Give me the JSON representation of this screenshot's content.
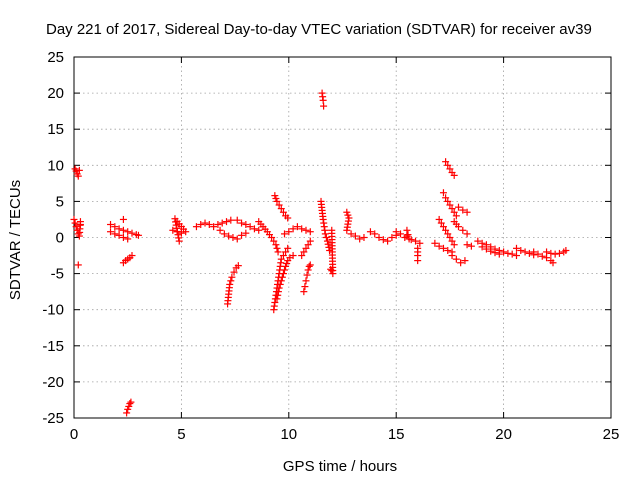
{
  "chart_data": {
    "type": "scatter",
    "title": "Day 221 of 2017, Sidereal Day-to-day VTEC variation (SDTVAR) for receiver av39",
    "xlabel": "GPS time / hours",
    "ylabel": "SDTVAR / TECUs",
    "xlim": [
      0,
      25
    ],
    "ylim": [
      -25,
      25
    ],
    "xticks": [
      0,
      5,
      10,
      15,
      20,
      25
    ],
    "yticks": [
      -25,
      -20,
      -15,
      -10,
      -5,
      0,
      5,
      10,
      15,
      20,
      25
    ],
    "grid": true,
    "marker": "+",
    "series": [
      {
        "name": "SDTVAR",
        "color": "#ff0000",
        "segments": [
          [
            [
              0.05,
              9.5
            ],
            [
              0.1,
              9.2
            ],
            [
              0.15,
              8.8
            ],
            [
              0.2,
              8.5
            ],
            [
              0.25,
              9.3
            ]
          ],
          [
            [
              0.0,
              2.5
            ],
            [
              0.05,
              2.0
            ],
            [
              0.1,
              1.5
            ],
            [
              0.15,
              1.0
            ],
            [
              0.2,
              0.5
            ],
            [
              0.25,
              0.2
            ],
            [
              0.3,
              2.2
            ],
            [
              0.3,
              1.8
            ]
          ],
          [
            [
              0.2,
              -3.8
            ]
          ],
          [
            [
              1.7,
              1.8
            ],
            [
              1.9,
              1.5
            ],
            [
              2.1,
              1.2
            ],
            [
              2.3,
              1.0
            ],
            [
              2.5,
              0.8
            ],
            [
              2.7,
              0.6
            ],
            [
              2.9,
              0.4
            ],
            [
              3.0,
              0.3
            ]
          ],
          [
            [
              1.7,
              0.8
            ],
            [
              1.9,
              0.5
            ],
            [
              2.1,
              0.3
            ],
            [
              2.3,
              0.0
            ],
            [
              2.5,
              -0.2
            ]
          ],
          [
            [
              2.3,
              2.5
            ]
          ],
          [
            [
              2.3,
              -3.5
            ],
            [
              2.4,
              -3.2
            ],
            [
              2.5,
              -3.0
            ],
            [
              2.6,
              -2.8
            ],
            [
              2.7,
              -2.5
            ]
          ],
          [
            [
              2.45,
              -24.3
            ],
            [
              2.5,
              -23.8
            ],
            [
              2.55,
              -23.4
            ],
            [
              2.6,
              -23.0
            ],
            [
              2.65,
              -22.8
            ]
          ],
          [
            [
              4.6,
              1.0
            ],
            [
              4.8,
              0.8
            ],
            [
              5.0,
              0.6
            ],
            [
              5.2,
              0.8
            ],
            [
              4.7,
              2.6
            ],
            [
              4.9,
              -0.5
            ]
          ],
          [
            [
              5.7,
              1.5
            ],
            [
              5.9,
              1.8
            ],
            [
              6.1,
              2.0
            ],
            [
              6.3,
              1.8
            ],
            [
              6.5,
              1.5
            ],
            [
              6.7,
              1.8
            ],
            [
              6.9,
              2.0
            ],
            [
              7.1,
              2.2
            ],
            [
              7.3,
              2.4
            ]
          ],
          [
            [
              6.8,
              1.0
            ],
            [
              7.0,
              0.5
            ],
            [
              7.2,
              0.2
            ],
            [
              7.4,
              0.0
            ],
            [
              7.6,
              -0.2
            ],
            [
              7.8,
              0.3
            ],
            [
              8.0,
              0.6
            ]
          ],
          [
            [
              7.6,
              2.4
            ],
            [
              7.8,
              2.0
            ],
            [
              8.0,
              1.8
            ],
            [
              8.2,
              1.5
            ],
            [
              8.4,
              1.2
            ],
            [
              8.6,
              1.0
            ]
          ],
          [
            [
              7.15,
              -9.2
            ],
            [
              7.25,
              -6.5
            ],
            [
              7.35,
              -5.5
            ],
            [
              7.45,
              -4.8
            ],
            [
              7.55,
              -4.2
            ],
            [
              7.65,
              -3.9
            ]
          ],
          [
            [
              8.6,
              2.2
            ],
            [
              8.8,
              1.5
            ],
            [
              9.0,
              0.8
            ],
            [
              9.2,
              0.0
            ],
            [
              9.4,
              -1.0
            ],
            [
              9.5,
              -2.0
            ]
          ],
          [
            [
              9.35,
              5.8
            ],
            [
              9.45,
              5.0
            ],
            [
              9.55,
              4.5
            ],
            [
              9.65,
              4.0
            ],
            [
              9.75,
              3.5
            ],
            [
              9.85,
              3.0
            ],
            [
              9.95,
              2.7
            ]
          ],
          [
            [
              9.3,
              -10.0
            ],
            [
              9.35,
              -9.0
            ],
            [
              9.4,
              -8.0
            ],
            [
              9.45,
              -7.0
            ],
            [
              9.5,
              -6.0
            ],
            [
              9.55,
              -5.0
            ],
            [
              9.6,
              -4.0
            ],
            [
              9.65,
              -3.0
            ],
            [
              9.75,
              -2.5
            ],
            [
              9.85,
              -2.0
            ],
            [
              9.95,
              -1.5
            ]
          ],
          [
            [
              9.45,
              -8.5
            ],
            [
              9.55,
              -7.0
            ],
            [
              9.65,
              -6.0
            ],
            [
              9.75,
              -5.0
            ],
            [
              9.85,
              -4.0
            ],
            [
              9.95,
              -3.2
            ],
            [
              10.05,
              -2.8
            ],
            [
              10.2,
              -2.5
            ]
          ],
          [
            [
              9.8,
              0.5
            ],
            [
              10.0,
              0.8
            ],
            [
              10.2,
              1.2
            ],
            [
              10.4,
              1.5
            ],
            [
              10.6,
              1.2
            ],
            [
              10.8,
              1.0
            ],
            [
              11.0,
              0.8
            ]
          ],
          [
            [
              10.7,
              -7.5
            ],
            [
              10.75,
              -6.8
            ],
            [
              10.8,
              -6.0
            ],
            [
              10.85,
              -5.2
            ],
            [
              10.9,
              -4.5
            ],
            [
              10.95,
              -4.0
            ],
            [
              11.0,
              -3.8
            ]
          ],
          [
            [
              10.6,
              -2.5
            ],
            [
              10.7,
              -2.0
            ],
            [
              10.8,
              -1.5
            ],
            [
              10.9,
              -1.0
            ],
            [
              11.0,
              -0.5
            ]
          ],
          [
            [
              11.55,
              20.0
            ],
            [
              11.6,
              19.0
            ],
            [
              11.62,
              18.2
            ]
          ],
          [
            [
              11.5,
              5.0
            ],
            [
              11.6,
              2.5
            ],
            [
              11.7,
              0.5
            ],
            [
              11.8,
              -0.5
            ],
            [
              11.9,
              -1.8
            ]
          ],
          [
            [
              11.95,
              -4.4
            ],
            [
              12.0,
              -4.6
            ],
            [
              12.05,
              -5.0
            ],
            [
              12.0,
              1.0
            ]
          ],
          [
            [
              12.7,
              3.5
            ],
            [
              12.8,
              2.7
            ],
            [
              12.7,
              1.0
            ],
            [
              12.9,
              0.5
            ],
            [
              13.1,
              0.2
            ],
            [
              13.3,
              -0.2
            ],
            [
              13.5,
              0.0
            ]
          ],
          [
            [
              13.8,
              0.8
            ],
            [
              14.0,
              0.5
            ],
            [
              14.2,
              0.0
            ],
            [
              14.4,
              -0.3
            ],
            [
              14.6,
              -0.5
            ],
            [
              14.8,
              0.0
            ],
            [
              15.0,
              0.3
            ]
          ],
          [
            [
              15.0,
              0.8
            ],
            [
              15.2,
              0.5
            ],
            [
              15.4,
              0.0
            ],
            [
              15.6,
              -0.2
            ],
            [
              15.5,
              1.0
            ]
          ],
          [
            [
              15.5,
              0.2
            ],
            [
              15.7,
              -0.3
            ],
            [
              15.9,
              -0.5
            ],
            [
              16.1,
              -0.8
            ],
            [
              16.0,
              -1.5
            ],
            [
              16.0,
              -2.5
            ],
            [
              16.0,
              -3.2
            ]
          ],
          [
            [
              16.8,
              -0.8
            ],
            [
              17.0,
              -1.2
            ],
            [
              17.2,
              -1.5
            ],
            [
              17.4,
              -1.8
            ],
            [
              17.6,
              -2.0
            ]
          ],
          [
            [
              17.0,
              2.5
            ],
            [
              17.1,
              2.0
            ],
            [
              17.2,
              1.5
            ],
            [
              17.3,
              1.0
            ],
            [
              17.4,
              0.5
            ],
            [
              17.5,
              0.0
            ],
            [
              17.6,
              -0.5
            ],
            [
              17.7,
              -1.0
            ]
          ],
          [
            [
              17.2,
              6.2
            ],
            [
              17.3,
              5.5
            ],
            [
              17.4,
              5.0
            ],
            [
              17.5,
              4.5
            ],
            [
              17.6,
              4.0
            ],
            [
              17.7,
              3.5
            ],
            [
              17.8,
              3.0
            ]
          ],
          [
            [
              17.3,
              10.5
            ],
            [
              17.4,
              10.0
            ],
            [
              17.5,
              9.5
            ],
            [
              17.6,
              9.0
            ],
            [
              17.7,
              8.6
            ]
          ],
          [
            [
              17.9,
              4.2
            ],
            [
              18.1,
              3.8
            ],
            [
              18.3,
              3.5
            ]
          ],
          [
            [
              17.7,
              2.2
            ],
            [
              17.9,
              1.5
            ],
            [
              18.1,
              1.0
            ],
            [
              18.3,
              0.5
            ]
          ],
          [
            [
              17.6,
              -2.5
            ],
            [
              17.8,
              -3.0
            ],
            [
              18.0,
              -3.5
            ],
            [
              18.2,
              -3.2
            ]
          ],
          [
            [
              18.3,
              -1.0
            ],
            [
              18.5,
              -1.2
            ]
          ],
          [
            [
              18.8,
              -0.5
            ],
            [
              19.0,
              -0.8
            ],
            [
              19.2,
              -1.0
            ],
            [
              19.4,
              -1.3
            ],
            [
              19.6,
              -1.6
            ],
            [
              19.8,
              -1.8
            ],
            [
              20.0,
              -2.0
            ],
            [
              20.2,
              -2.2
            ],
            [
              20.4,
              -2.3
            ],
            [
              20.6,
              -2.5
            ]
          ],
          [
            [
              19.0,
              -1.3
            ],
            [
              19.2,
              -1.6
            ],
            [
              19.4,
              -1.9
            ],
            [
              19.6,
              -2.1
            ],
            [
              19.8,
              -2.3
            ]
          ],
          [
            [
              20.6,
              -1.5
            ],
            [
              20.8,
              -1.8
            ],
            [
              21.0,
              -2.0
            ],
            [
              21.2,
              -2.2
            ],
            [
              21.4,
              -2.4
            ]
          ],
          [
            [
              21.4,
              -2.0
            ],
            [
              21.6,
              -2.3
            ],
            [
              21.8,
              -2.6
            ],
            [
              22.0,
              -2.8
            ],
            [
              22.2,
              -3.2
            ],
            [
              22.3,
              -3.5
            ]
          ],
          [
            [
              22.0,
              -2.0
            ],
            [
              22.2,
              -2.2
            ],
            [
              22.4,
              -2.3
            ],
            [
              22.6,
              -2.2
            ],
            [
              22.8,
              -2.0
            ],
            [
              22.9,
              -1.8
            ]
          ]
        ]
      }
    ]
  }
}
